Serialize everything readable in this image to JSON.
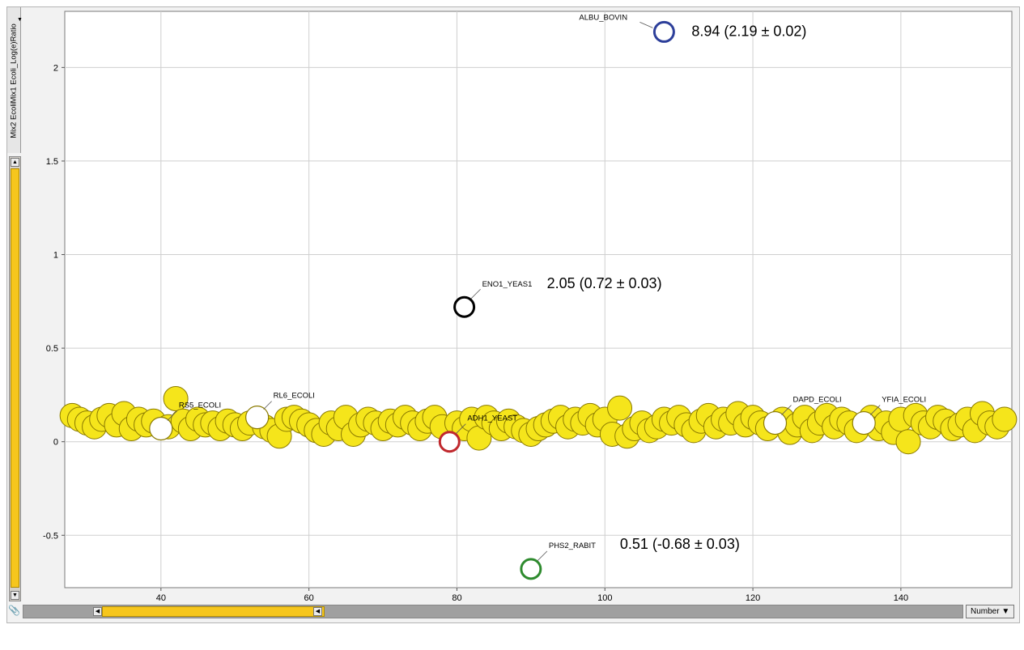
{
  "panel": {
    "y_axis_selector": "Mix2 EcoliMix1 Ecoli_Log(e)Ratio",
    "x_axis_selector": "Number"
  },
  "colors": {
    "plot_background": "#ffffff",
    "frame": "#f2f2f2",
    "gridline": "#cfcfcf",
    "point_fill": "#f5e51b",
    "point_stroke": "#8a7a00",
    "highlight_fill": "#ffffff",
    "albu_ring": "#2d3f9a",
    "eno1_ring": "#000000",
    "adh1_ring": "#c0282d",
    "phs2_ring": "#2e8b2e",
    "scroll_thumb": "#f6c61d"
  },
  "icons": {
    "paperclip": "paperclip-icon",
    "dropdown": "chevron-down-icon",
    "scroll_left": "scroll-left-icon",
    "scroll_right": "scroll-right-icon",
    "scroll_up": "scroll-up-icon",
    "scroll_down": "scroll-down-icon"
  },
  "chart_data": {
    "type": "scatter",
    "title": "",
    "xlabel": "",
    "ylabel": "Mix2 EcoliMix1 Ecoli_Log(e)Ratio",
    "xlim": [
      27,
      155
    ],
    "ylim": [
      -0.78,
      2.3
    ],
    "xticks": [
      40,
      60,
      80,
      100,
      120,
      140
    ],
    "yticks": [
      2,
      1.5,
      1,
      0.5,
      0,
      -0.5
    ],
    "ytick_labels": [
      "2",
      "1.5",
      "1",
      "0.5",
      "0",
      "-0.5"
    ],
    "grid": true,
    "series": [
      {
        "points": [
          [
            28,
            0.14
          ],
          [
            29,
            0.12
          ],
          [
            30,
            0.1
          ],
          [
            31,
            0.08
          ],
          [
            32,
            0.12
          ],
          [
            33,
            0.14
          ],
          [
            34,
            0.09
          ],
          [
            35,
            0.15
          ],
          [
            36,
            0.07
          ],
          [
            37,
            0.12
          ],
          [
            38,
            0.09
          ],
          [
            39,
            0.11
          ],
          [
            41,
            0.08
          ],
          [
            42,
            0.23
          ],
          [
            43,
            0.11
          ],
          [
            44,
            0.07
          ],
          [
            45,
            0.12
          ],
          [
            46,
            0.09
          ],
          [
            47,
            0.1
          ],
          [
            48,
            0.07
          ],
          [
            49,
            0.11
          ],
          [
            50,
            0.09
          ],
          [
            51,
            0.07
          ],
          [
            52,
            0.1
          ],
          [
            54,
            0.08
          ],
          [
            55,
            0.06
          ],
          [
            56,
            0.03
          ],
          [
            57,
            0.12
          ],
          [
            58,
            0.13
          ],
          [
            59,
            0.11
          ],
          [
            60,
            0.09
          ],
          [
            61,
            0.06
          ],
          [
            62,
            0.04
          ],
          [
            63,
            0.1
          ],
          [
            64,
            0.07
          ],
          [
            65,
            0.13
          ],
          [
            66,
            0.04
          ],
          [
            67,
            0.09
          ],
          [
            68,
            0.12
          ],
          [
            69,
            0.1
          ],
          [
            70,
            0.07
          ],
          [
            71,
            0.11
          ],
          [
            72,
            0.09
          ],
          [
            73,
            0.13
          ],
          [
            74,
            0.1
          ],
          [
            75,
            0.07
          ],
          [
            76,
            0.11
          ],
          [
            77,
            0.13
          ],
          [
            78,
            0.08
          ],
          [
            80,
            0.1
          ],
          [
            81,
            0.07
          ],
          [
            82,
            0.12
          ],
          [
            83,
            0.02
          ],
          [
            84,
            0.13
          ],
          [
            85,
            0.1
          ],
          [
            86,
            0.07
          ],
          [
            87,
            0.11
          ],
          [
            88,
            0.08
          ],
          [
            89,
            0.06
          ],
          [
            90,
            0.04
          ],
          [
            91,
            0.07
          ],
          [
            92,
            0.09
          ],
          [
            93,
            0.11
          ],
          [
            94,
            0.13
          ],
          [
            95,
            0.08
          ],
          [
            96,
            0.12
          ],
          [
            97,
            0.1
          ],
          [
            98,
            0.14
          ],
          [
            99,
            0.09
          ],
          [
            100,
            0.12
          ],
          [
            101,
            0.04
          ],
          [
            102,
            0.18
          ],
          [
            103,
            0.03
          ],
          [
            104,
            0.07
          ],
          [
            105,
            0.1
          ],
          [
            106,
            0.06
          ],
          [
            107,
            0.08
          ],
          [
            108,
            0.12
          ],
          [
            109,
            0.1
          ],
          [
            110,
            0.13
          ],
          [
            111,
            0.09
          ],
          [
            112,
            0.06
          ],
          [
            113,
            0.11
          ],
          [
            114,
            0.14
          ],
          [
            115,
            0.08
          ],
          [
            116,
            0.12
          ],
          [
            117,
            0.1
          ],
          [
            118,
            0.15
          ],
          [
            119,
            0.09
          ],
          [
            120,
            0.13
          ],
          [
            121,
            0.1
          ],
          [
            122,
            0.07
          ],
          [
            124,
            0.12
          ],
          [
            125,
            0.05
          ],
          [
            126,
            0.09
          ],
          [
            127,
            0.13
          ],
          [
            128,
            0.06
          ],
          [
            129,
            0.1
          ],
          [
            130,
            0.14
          ],
          [
            131,
            0.08
          ],
          [
            132,
            0.12
          ],
          [
            133,
            0.1
          ],
          [
            134,
            0.06
          ],
          [
            136,
            0.13
          ],
          [
            137,
            0.07
          ],
          [
            138,
            0.1
          ],
          [
            139,
            0.05
          ],
          [
            140,
            0.12
          ],
          [
            141,
            0.0
          ],
          [
            142,
            0.14
          ],
          [
            143,
            0.1
          ],
          [
            144,
            0.08
          ],
          [
            145,
            0.13
          ],
          [
            146,
            0.11
          ],
          [
            147,
            0.07
          ],
          [
            148,
            0.09
          ],
          [
            149,
            0.12
          ],
          [
            150,
            0.06
          ],
          [
            151,
            0.15
          ],
          [
            152,
            0.1
          ],
          [
            153,
            0.08
          ],
          [
            154,
            0.12
          ]
        ]
      }
    ],
    "highlighted": [
      {
        "name": "ALBU_BOVIN",
        "x": 108,
        "y": 2.19,
        "ring": "#2d3f9a",
        "fill": "none",
        "annotation": "8.94 (2.19 ± 0.02)"
      },
      {
        "name": "ENO1_YEAS1",
        "x": 81,
        "y": 0.72,
        "ring": "#000000",
        "fill": "none",
        "annotation": "2.05 (0.72 ± 0.03)"
      },
      {
        "name": "ADH1_YEAST",
        "x": 79,
        "y": 0.0,
        "ring": "#c0282d",
        "fill": "none",
        "annotation": ""
      },
      {
        "name": "PHS2_RABIT",
        "x": 90,
        "y": -0.68,
        "ring": "#2e8b2e",
        "fill": "none",
        "annotation": "0.51 (-0.68 ± 0.03)"
      },
      {
        "name": "RS5_ECOLI",
        "x": 40,
        "y": 0.07,
        "ring": "#8a7a00",
        "fill": "#ffffff",
        "annotation": ""
      },
      {
        "name": "RL6_ECOLI",
        "x": 53,
        "y": 0.13,
        "ring": "#8a7a00",
        "fill": "#ffffff",
        "annotation": ""
      },
      {
        "name": "DAPD_ECOLI",
        "x": 123,
        "y": 0.1,
        "ring": "#8a7a00",
        "fill": "#ffffff",
        "annotation": ""
      },
      {
        "name": "YFIA_ECOLI",
        "x": 135,
        "y": 0.1,
        "ring": "#8a7a00",
        "fill": "#ffffff",
        "annotation": ""
      }
    ]
  }
}
